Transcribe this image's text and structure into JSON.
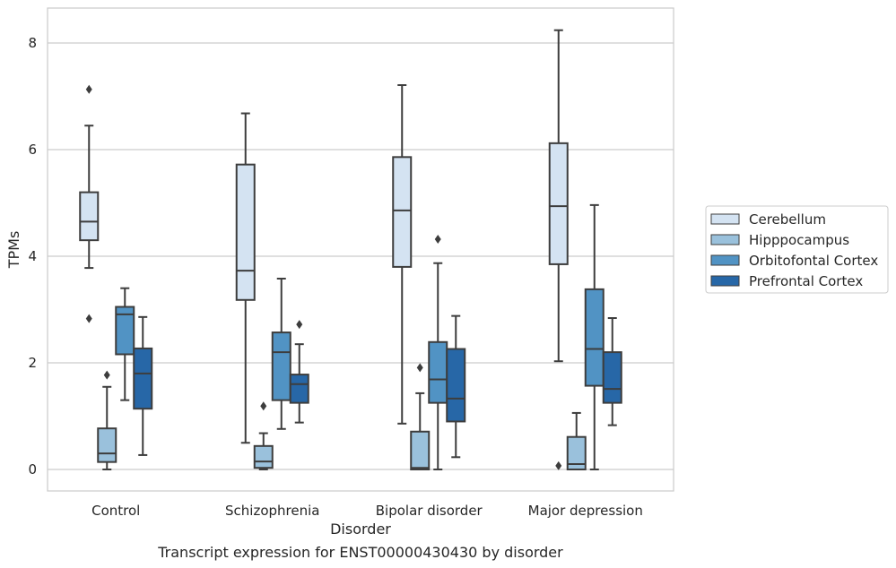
{
  "chart_data": {
    "type": "box",
    "xlabel": "Disorder",
    "ylabel": "TPMs",
    "caption": "Transcript expression for ENST00000430430 by disorder",
    "ylim": [
      -0.4,
      8.65
    ],
    "y_ticks": [
      0,
      2,
      4,
      6,
      8
    ],
    "y_tick_labels": [
      "0",
      "2",
      "4",
      "6",
      "8"
    ],
    "grid": "horizontal",
    "legend_position": "right",
    "categories": [
      "Control",
      "Schizophrenia",
      "Bipolar disorder",
      "Major depression"
    ],
    "series": [
      {
        "name": "Cerebellum",
        "color": "#d4e3f2",
        "boxes": [
          {
            "whisker_low": 3.78,
            "q1": 4.3,
            "median": 4.65,
            "q3": 5.2,
            "whisker_high": 6.45,
            "outliers": [
              7.13,
              2.83
            ]
          },
          {
            "whisker_low": 0.5,
            "q1": 3.18,
            "median": 3.73,
            "q3": 5.72,
            "whisker_high": 6.68,
            "outliers": []
          },
          {
            "whisker_low": 0.86,
            "q1": 3.8,
            "median": 4.86,
            "q3": 5.86,
            "whisker_high": 7.21,
            "outliers": []
          },
          {
            "whisker_low": 2.03,
            "q1": 3.85,
            "median": 4.94,
            "q3": 6.12,
            "whisker_high": 8.24,
            "outliers": [
              0.07
            ]
          }
        ]
      },
      {
        "name": "Hipppocampus",
        "color": "#9ac1dc",
        "boxes": [
          {
            "whisker_low": 0.0,
            "q1": 0.14,
            "median": 0.3,
            "q3": 0.77,
            "whisker_high": 1.55,
            "outliers": [
              1.77
            ]
          },
          {
            "whisker_low": 0.0,
            "q1": 0.03,
            "median": 0.15,
            "q3": 0.44,
            "whisker_high": 0.68,
            "outliers": [
              1.19
            ]
          },
          {
            "whisker_low": 0.0,
            "q1": 0.0,
            "median": 0.03,
            "q3": 0.71,
            "whisker_high": 1.43,
            "outliers": [
              1.91
            ]
          },
          {
            "whisker_low": 0.0,
            "q1": 0.0,
            "median": 0.1,
            "q3": 0.61,
            "whisker_high": 1.06,
            "outliers": []
          }
        ]
      },
      {
        "name": "Orbitofontal Cortex",
        "color": "#5193c4",
        "boxes": [
          {
            "whisker_low": 1.3,
            "q1": 2.16,
            "median": 2.91,
            "q3": 3.05,
            "whisker_high": 3.4,
            "outliers": []
          },
          {
            "whisker_low": 0.76,
            "q1": 1.3,
            "median": 2.2,
            "q3": 2.57,
            "whisker_high": 3.58,
            "outliers": []
          },
          {
            "whisker_low": 0.0,
            "q1": 1.25,
            "median": 1.69,
            "q3": 2.39,
            "whisker_high": 3.87,
            "outliers": [
              4.32
            ]
          },
          {
            "whisker_low": 0.0,
            "q1": 1.57,
            "median": 2.26,
            "q3": 3.38,
            "whisker_high": 4.96,
            "outliers": []
          }
        ]
      },
      {
        "name": "Prefrontal Cortex",
        "color": "#2767a7",
        "boxes": [
          {
            "whisker_low": 0.27,
            "q1": 1.14,
            "median": 1.8,
            "q3": 2.27,
            "whisker_high": 2.86,
            "outliers": []
          },
          {
            "whisker_low": 0.88,
            "q1": 1.25,
            "median": 1.6,
            "q3": 1.78,
            "whisker_high": 2.35,
            "outliers": [
              2.72
            ]
          },
          {
            "whisker_low": 0.23,
            "q1": 0.9,
            "median": 1.33,
            "q3": 2.26,
            "whisker_high": 2.88,
            "outliers": []
          },
          {
            "whisker_low": 0.83,
            "q1": 1.25,
            "median": 1.51,
            "q3": 2.2,
            "whisker_high": 2.84,
            "outliers": []
          }
        ]
      }
    ]
  }
}
